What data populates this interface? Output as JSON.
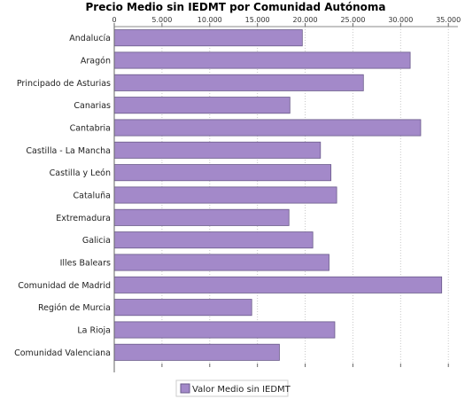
{
  "chart_data": {
    "type": "bar",
    "orientation": "horizontal",
    "title": "Precio Medio sin IEDMT por Comunidad Autónoma",
    "xlabel": "",
    "ylabel": "",
    "xlim": [
      0,
      36000
    ],
    "ticks": [
      0,
      5000,
      10000,
      15000,
      20000,
      25000,
      30000,
      35000
    ],
    "tick_labels": [
      "0",
      "5.000",
      "10.000",
      "15.000",
      "20.000",
      "25.000",
      "30.000",
      "35.000"
    ],
    "grid": true,
    "legend_position": "bottom",
    "bar_color": "#a389c9",
    "bar_stroke": "#6a5a8a",
    "categories": [
      "Andalucía",
      "Aragón",
      "Principado de Asturias",
      "Canarias",
      "Cantabria",
      "Castilla - La Mancha",
      "Castilla y León",
      "Cataluña",
      "Extremadura",
      "Galicia",
      "Illes Balears",
      "Comunidad de Madrid",
      "Región de Murcia",
      "La Rioja",
      "Comunidad Valenciana"
    ],
    "series": [
      {
        "name": "Valor Medio sin IEDMT",
        "values": [
          19700,
          31000,
          26100,
          18400,
          32100,
          21600,
          22700,
          23300,
          18300,
          20800,
          22500,
          34300,
          14400,
          23100,
          17300
        ]
      }
    ]
  }
}
